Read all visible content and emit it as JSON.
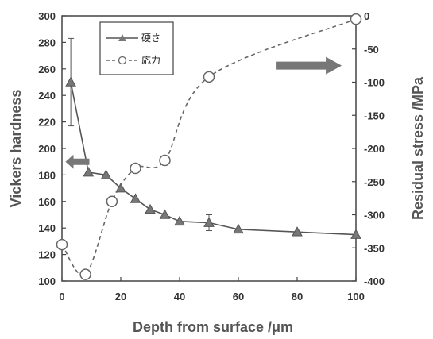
{
  "chart_data": {
    "type": "line",
    "xlabel": "Depth from surface  /μm",
    "ylabel_left": "Vickers hardness",
    "ylabel_right": "Residual stress  /MPa",
    "xlim": [
      0,
      100
    ],
    "xticks": [
      0,
      20,
      40,
      60,
      80,
      100
    ],
    "ylim_left": [
      100,
      300
    ],
    "yticks_left": [
      100,
      120,
      140,
      160,
      180,
      200,
      220,
      240,
      260,
      280,
      300
    ],
    "ylim_right": [
      -400,
      0
    ],
    "yticks_right": [
      0,
      -50,
      -100,
      -150,
      -200,
      -250,
      -300,
      -350,
      -400
    ],
    "legend_position": "top-left",
    "arrows": [
      {
        "direction": "left",
        "points_to": "left axis"
      },
      {
        "direction": "right",
        "points_to": "right axis"
      }
    ],
    "series": [
      {
        "name": "硬さ",
        "axis": "left",
        "style": "solid",
        "marker": "triangle",
        "x": [
          3,
          9,
          15,
          20,
          25,
          30,
          35,
          40,
          50,
          60,
          80,
          100
        ],
        "y": [
          250,
          182,
          180,
          170,
          162,
          154,
          150,
          145,
          144,
          139,
          137,
          135
        ],
        "error": [
          33,
          0,
          0,
          0,
          0,
          0,
          0,
          0,
          6,
          0,
          0,
          0
        ]
      },
      {
        "name": "応力",
        "axis": "right",
        "style": "dashed",
        "marker": "open-circle",
        "x": [
          0,
          8,
          17,
          25,
          35,
          50,
          100
        ],
        "y": [
          -345,
          -390,
          -280,
          -230,
          -218,
          -92,
          -5
        ]
      }
    ]
  }
}
